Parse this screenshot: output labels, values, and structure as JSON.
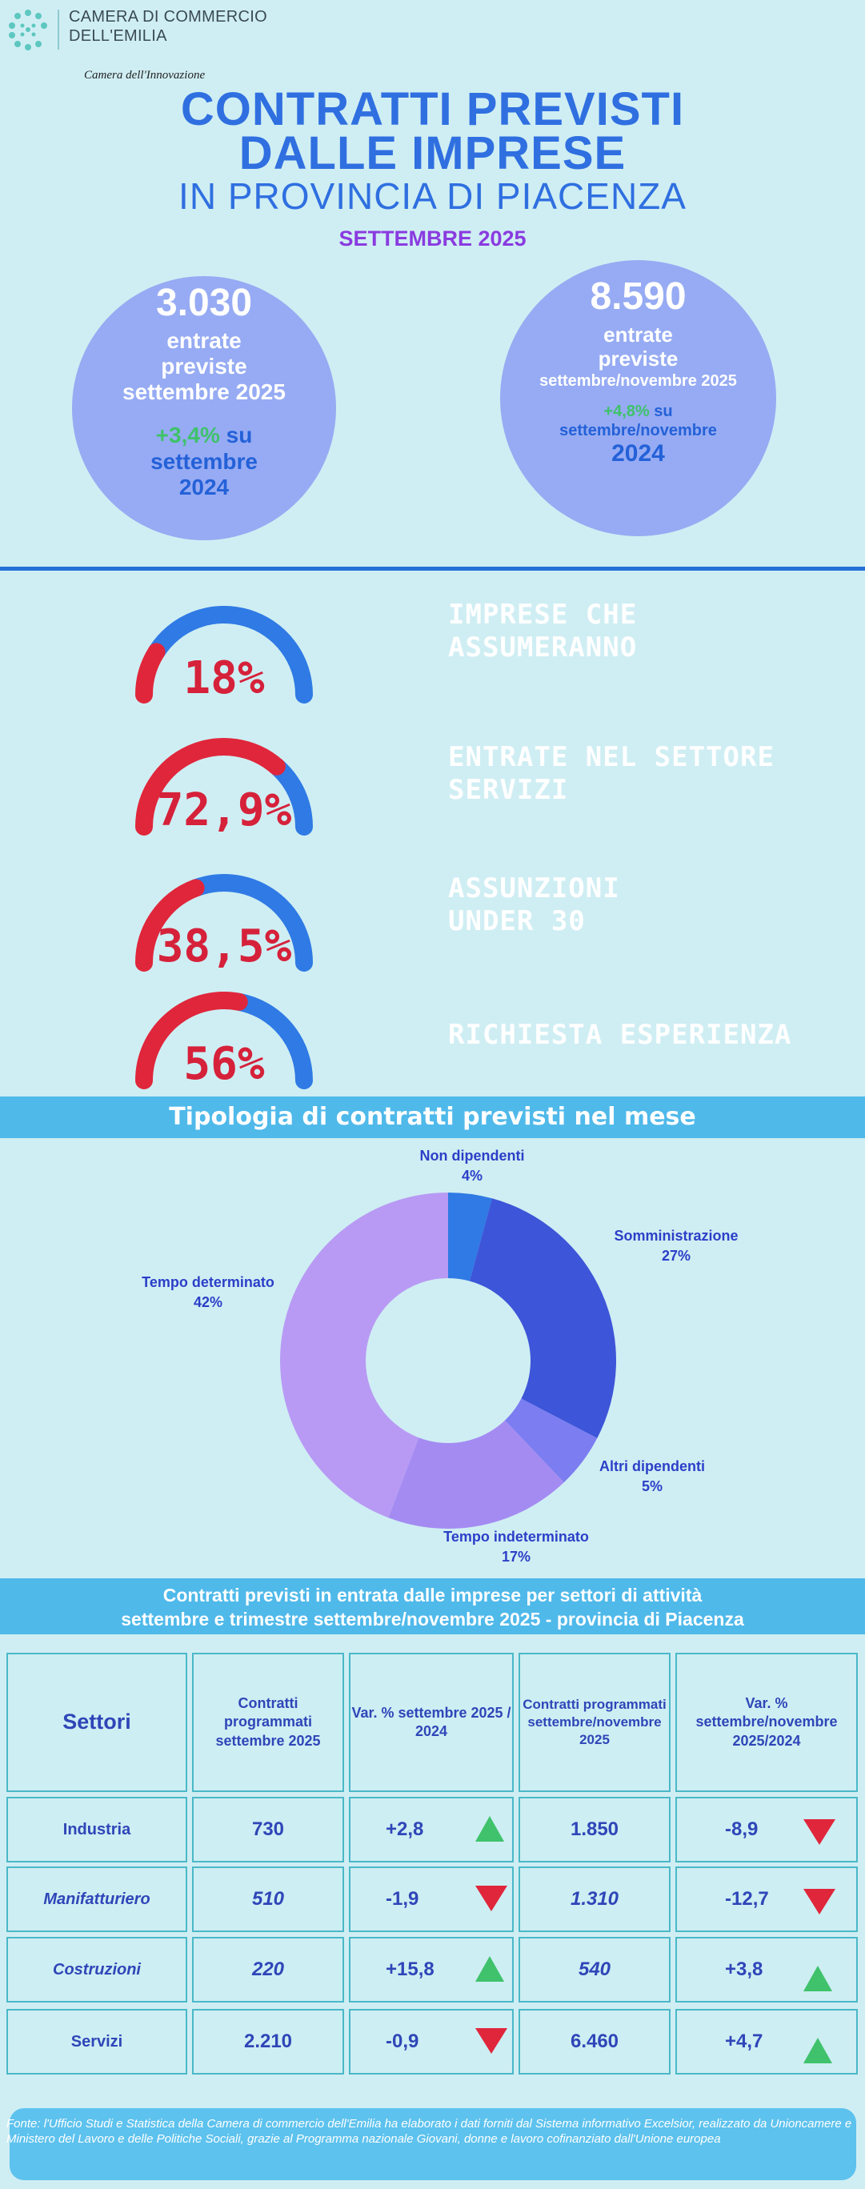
{
  "header": {
    "org_line1": "CAMERA DI COMMERCIO",
    "org_line2": "DELL'EMILIA",
    "tagline": "Camera dell'Innovazione",
    "logo_icon": "dots-logo-icon"
  },
  "title": {
    "line1": "CONTRATTI PREVISTI",
    "line2": "DALLE IMPRESE",
    "line3": "IN PROVINCIA DI PIACENZA",
    "month": "SETTEMBRE 2025"
  },
  "circles": {
    "left": {
      "number": "3.030",
      "label1": "entrate",
      "label2": "previste",
      "label3": "settembre 2025",
      "variation": "+3,4%",
      "variation_su": "su",
      "variation_rest1": "settembre",
      "variation_rest2": "2024"
    },
    "right": {
      "number": "8.590",
      "label1": "entrate",
      "label2": "previste",
      "label3": "settembre/novembre 2025",
      "variation": "+4,8%",
      "variation_su": "su",
      "variation_rest1": "settembre/novembre",
      "variation_rest2": "2024"
    }
  },
  "gauges": [
    {
      "value": 18,
      "display": "18%",
      "label1": "IMPRESE CHE",
      "label2": "ASSUMERANNO"
    },
    {
      "value": 72.9,
      "display": "72,9%",
      "label1": "ENTRATE NEL SETTORE",
      "label2": "SERVIZI"
    },
    {
      "value": 38.5,
      "display": "38,5%",
      "label1": "ASSUNZIONI",
      "label2": "UNDER 30"
    },
    {
      "value": 56,
      "display": "56%",
      "label1": "RICHIESTA ESPERIENZA",
      "label2": ""
    }
  ],
  "colors": {
    "gauge_fill": "#e0263b",
    "gauge_track": "#2f7ae5",
    "title_blue": "#2f6fe0",
    "banner": "#4fb9ea",
    "up": "#3fc26b",
    "down": "#e0263b"
  },
  "chart_data": {
    "type": "pie",
    "title": "Tipologia di contratti previsti nel mese",
    "categories": [
      "Non dipendenti",
      "Somministrazione",
      "Altri dipendenti",
      "Tempo indeterminato",
      "Tempo determinato"
    ],
    "values": [
      4,
      27,
      5,
      17,
      42
    ],
    "labels": [
      "4%",
      "27%",
      "5%",
      "17%",
      "42%"
    ],
    "colors": [
      "#2f7ae5",
      "#3d55d8",
      "#7b7df0",
      "#a48bf2",
      "#b89af4"
    ],
    "donut": true
  },
  "table": {
    "banner_line1": "Contratti previsti in entrata dalle imprese per settori di attività",
    "banner_line2": "settembre e trimestre settembre/novembre 2025 - provincia di Piacenza",
    "headers": [
      "Settori",
      "Contratti programmati settembre 2025",
      "Var. % settembre 2025 / 2024",
      "Contratti programmati settembre/novembre 2025",
      "Var. % settembre/novembre 2025/2024"
    ],
    "rows": [
      {
        "sector": "Industria",
        "c1": "730",
        "v1": "+2,8",
        "t1": "up",
        "c2": "1.850",
        "v2": "-8,9",
        "t2": "down"
      },
      {
        "sector": "Manifatturiero",
        "c1": "510",
        "v1": "-1,9",
        "t1": "down",
        "c2": "1.310",
        "v2": "-12,7",
        "t2": "down"
      },
      {
        "sector": "Costruzioni",
        "c1": "220",
        "v1": "+15,8",
        "t1": "up",
        "c2": "540",
        "v2": "+3,8",
        "t2": "up"
      },
      {
        "sector": "Servizi",
        "c1": "2.210",
        "v1": "-0,9",
        "t1": "down",
        "c2": "6.460",
        "v2": "+4,7",
        "t2": "up"
      }
    ]
  },
  "footnote": "Fonte: l'Ufficio Studi e Statistica della Camera di commercio dell'Emilia ha elaborato i dati forniti dal Sistema informativo Excelsior, realizzato da Unioncamere e Ministero del Lavoro e delle Politiche Sociali, grazie al Programma nazionale Giovani, donne e lavoro cofinanziato dall'Unione europea"
}
